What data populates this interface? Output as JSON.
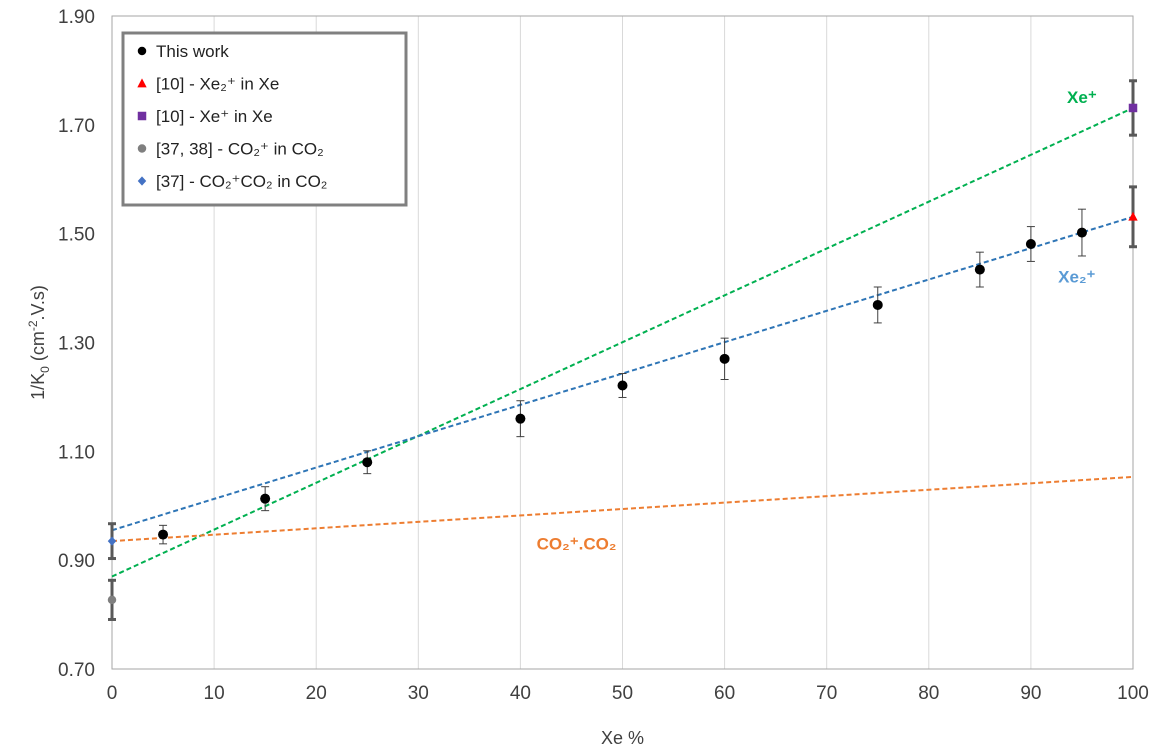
{
  "chart_data": {
    "type": "scatter",
    "xlabel": "Xe %",
    "ylabel": "1/K0 (cm-2.V.s)",
    "ylabel_parts": {
      "main": "1/K",
      "sub": "0",
      "mid": " (cm",
      "sup": "-2",
      "tail": ".V.s)"
    },
    "xlim": [
      0,
      100
    ],
    "ylim": [
      0.7,
      1.9
    ],
    "x_ticks": [
      "0",
      "10",
      "20",
      "30",
      "40",
      "50",
      "60",
      "70",
      "80",
      "90",
      "100"
    ],
    "y_ticks": [
      "0.70",
      "0.90",
      "1.10",
      "1.30",
      "1.50",
      "1.70",
      "1.90"
    ],
    "grid": "vertical",
    "legend_position": "top-left",
    "legend": [
      {
        "label": "This work",
        "marker": "circle",
        "color": "#000000"
      },
      {
        "label": "[10] - Xe₂⁺  in Xe",
        "marker": "triangle",
        "color": "#ff0000"
      },
      {
        "label": "[10] - Xe⁺  in Xe",
        "marker": "square",
        "color": "#7030a0"
      },
      {
        "label": "[37, 38] - CO₂⁺  in CO₂",
        "marker": "circle",
        "color": "#7f7f7f"
      },
      {
        "label": "[37] - CO₂⁺CO₂ in CO₂",
        "marker": "diamond",
        "color": "#4472c4"
      }
    ],
    "series": [
      {
        "name": "This work",
        "marker": "circle",
        "color": "#000000",
        "points": [
          {
            "x": 5,
            "y": 0.947,
            "err": 0.017
          },
          {
            "x": 15,
            "y": 1.013,
            "err": 0.022
          },
          {
            "x": 25,
            "y": 1.08,
            "err": 0.021
          },
          {
            "x": 40,
            "y": 1.16,
            "err": 0.033
          },
          {
            "x": 50,
            "y": 1.221,
            "err": 0.022
          },
          {
            "x": 60,
            "y": 1.27,
            "err": 0.038
          },
          {
            "x": 75,
            "y": 1.369,
            "err": 0.033
          },
          {
            "x": 85,
            "y": 1.434,
            "err": 0.032
          },
          {
            "x": 90,
            "y": 1.481,
            "err": 0.032
          },
          {
            "x": 95,
            "y": 1.502,
            "err": 0.043
          }
        ]
      },
      {
        "name": "[10] - Xe₂⁺  in Xe",
        "marker": "triangle",
        "color": "#ff0000",
        "points": [
          {
            "x": 100,
            "y": 1.531,
            "err": 0.055
          }
        ]
      },
      {
        "name": "[10] - Xe⁺  in Xe",
        "marker": "square",
        "color": "#7030a0",
        "points": [
          {
            "x": 100,
            "y": 1.731,
            "err": 0.05
          }
        ]
      },
      {
        "name": "[37, 38] - CO₂⁺  in CO₂",
        "marker": "circle",
        "color": "#7f7f7f",
        "points": [
          {
            "x": 0,
            "y": 0.827,
            "err": 0.036
          }
        ]
      },
      {
        "name": "[37] - CO₂⁺CO₂ in CO₂",
        "marker": "diamond",
        "color": "#4472c4",
        "points": [
          {
            "x": 0,
            "y": 0.935,
            "err": 0.032
          }
        ]
      }
    ],
    "trendlines": [
      {
        "label": "Xe⁺",
        "color": "#00b050",
        "x": [
          0,
          100
        ],
        "y": [
          0.87,
          1.731
        ]
      },
      {
        "label": "Xe₂⁺",
        "color": "#5b9bd5",
        "line_color": "#2e75b6",
        "x": [
          0,
          100
        ],
        "y": [
          0.955,
          1.531
        ]
      },
      {
        "label": "CO₂⁺.CO₂",
        "color": "#ed7d31",
        "x": [
          0,
          100
        ],
        "y": [
          0.935,
          1.053
        ]
      }
    ],
    "annotations": [
      {
        "text": "Xe⁺",
        "x": 95,
        "y": 1.74,
        "color": "#00b050"
      },
      {
        "text": "Xe₂⁺",
        "x": 94.5,
        "y": 1.41,
        "color": "#5b9bd5"
      },
      {
        "text": "CO₂⁺.CO₂",
        "x": 45.5,
        "y": 0.92,
        "color": "#ed7d31"
      }
    ]
  }
}
